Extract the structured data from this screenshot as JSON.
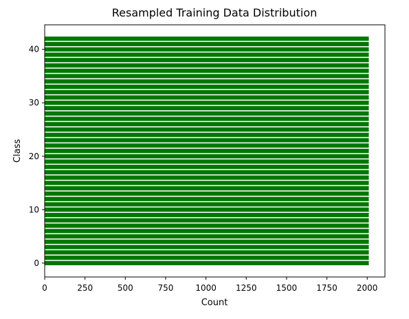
{
  "chart_data": {
    "type": "bar",
    "orientation": "horizontal",
    "title": "Resampled Training Data Distribution",
    "xlabel": "Count",
    "ylabel": "Class",
    "categories": [
      0,
      1,
      2,
      3,
      4,
      5,
      6,
      7,
      8,
      9,
      10,
      11,
      12,
      13,
      14,
      15,
      16,
      17,
      18,
      19,
      20,
      21,
      22,
      23,
      24,
      25,
      26,
      27,
      28,
      29,
      30,
      31,
      32,
      33,
      34,
      35,
      36,
      37,
      38,
      39,
      40,
      41,
      42
    ],
    "values": [
      2010,
      2010,
      2010,
      2010,
      2010,
      2010,
      2010,
      2010,
      2010,
      2010,
      2010,
      2010,
      2010,
      2010,
      2010,
      2010,
      2010,
      2010,
      2010,
      2010,
      2010,
      2010,
      2010,
      2010,
      2010,
      2010,
      2010,
      2010,
      2010,
      2010,
      2010,
      2010,
      2010,
      2010,
      2010,
      2010,
      2010,
      2010,
      2010,
      2010,
      2010,
      2010,
      2010
    ],
    "xlim": [
      0,
      2110
    ],
    "ylim": [
      -2.6,
      44.6
    ],
    "xticks": [
      0,
      250,
      500,
      750,
      1000,
      1250,
      1500,
      1750,
      2000
    ],
    "yticks": [
      0,
      10,
      20,
      30,
      40
    ],
    "bar_color": "#007700",
    "grid": false,
    "legend": "none"
  }
}
